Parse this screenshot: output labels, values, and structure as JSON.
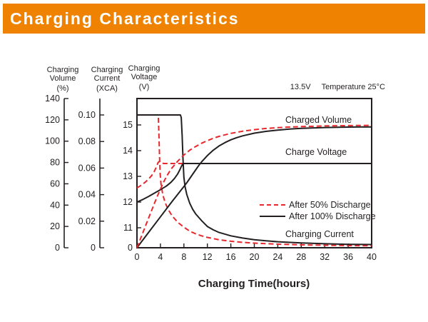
{
  "header": {
    "title": "Charging Characteristics",
    "bg_color": "#EF8200",
    "text_color": "#ffffff"
  },
  "chart_data": {
    "type": "line",
    "title": "Charging Characteristics",
    "xlabel": "Charging Time(hours)",
    "x_range": [
      0,
      40
    ],
    "x_tick_values": [
      0,
      4,
      8,
      12,
      16,
      20,
      24,
      28,
      32,
      36,
      40
    ],
    "x_tick_labels": [
      "0",
      "4",
      "8",
      "12",
      "16",
      "20",
      "24",
      "28",
      "32",
      "36",
      "40"
    ],
    "annotation": {
      "voltage_setting": "13.5V",
      "temperature": "Temperature 25°C"
    },
    "axes": [
      {
        "name": "charging-volume",
        "label_line1": "Charging",
        "label_line2": "Volume",
        "unit": "(%)",
        "range": [
          0,
          140
        ],
        "tick_values": [
          0,
          20,
          40,
          60,
          80,
          100,
          120,
          140
        ],
        "tick_labels": [
          "0",
          "20",
          "40",
          "60",
          "80",
          "100",
          "120",
          "140"
        ]
      },
      {
        "name": "charging-current",
        "label_line1": "Charging",
        "label_line2": "Current",
        "unit": "(XCA)",
        "range": [
          0,
          0.112
        ],
        "tick_values": [
          0,
          0.02,
          0.04,
          0.06,
          0.08,
          0.1
        ],
        "tick_labels": [
          "0",
          "0.02",
          "0.04",
          "0.06",
          "0.08",
          "0.10"
        ]
      },
      {
        "name": "charging-voltage",
        "label_line1": "Charging",
        "label_line2": "Voltage",
        "unit": "(V)",
        "range": [
          0,
          15.5
        ],
        "tick_values": [
          0,
          11,
          12,
          13,
          14,
          15
        ],
        "tick_labels": [
          "0",
          "11",
          "12",
          "13",
          "14",
          "15"
        ]
      }
    ],
    "curve_labels": {
      "charged_volume": "Charged Volume",
      "charge_voltage": "Charge Voltage",
      "charging_current": "Charging Current"
    },
    "legend": [
      {
        "label": "After 50% Discharge",
        "style": "dashed",
        "color": "#e8282c"
      },
      {
        "label": "After 100% Discharge",
        "style": "solid",
        "color": "#231f20"
      }
    ],
    "grid": false,
    "series": [
      {
        "name": "charging-current-50",
        "group": "After 50% Discharge",
        "axis": "current",
        "style": "dashed",
        "color": "#e8282c",
        "points": [
          [
            0,
            0.1
          ],
          [
            3.5,
            0.1
          ],
          [
            3.65,
            0.098
          ],
          [
            3.75,
            0.085
          ],
          [
            3.85,
            0.068
          ],
          [
            3.95,
            0.056
          ],
          [
            4.1,
            0.048
          ],
          [
            4.4,
            0.04
          ],
          [
            4.8,
            0.034
          ],
          [
            5.3,
            0.029
          ],
          [
            6,
            0.024
          ],
          [
            7,
            0.019
          ],
          [
            8,
            0.0155
          ],
          [
            9,
            0.0125
          ],
          [
            10,
            0.0105
          ],
          [
            11,
            0.009
          ],
          [
            12,
            0.0078
          ],
          [
            14,
            0.006
          ],
          [
            16,
            0.0049
          ],
          [
            18,
            0.0041
          ],
          [
            20,
            0.0035
          ],
          [
            24,
            0.0027
          ],
          [
            28,
            0.0022
          ],
          [
            32,
            0.0019
          ],
          [
            36,
            0.0016
          ],
          [
            40,
            0.0015
          ]
        ]
      },
      {
        "name": "charging-current-100",
        "group": "After 100% Discharge",
        "axis": "current",
        "style": "solid",
        "color": "#231f20",
        "points": [
          [
            0,
            0.1
          ],
          [
            7.4,
            0.1
          ],
          [
            7.55,
            0.098
          ],
          [
            7.7,
            0.085
          ],
          [
            7.85,
            0.066
          ],
          [
            8.0,
            0.053
          ],
          [
            8.2,
            0.046
          ],
          [
            8.5,
            0.04
          ],
          [
            9,
            0.0335
          ],
          [
            9.5,
            0.029
          ],
          [
            10,
            0.0255
          ],
          [
            11,
            0.0205
          ],
          [
            12,
            0.016
          ],
          [
            13,
            0.0135
          ],
          [
            14,
            0.0115
          ],
          [
            16,
            0.009
          ],
          [
            18,
            0.0073
          ],
          [
            20,
            0.006
          ],
          [
            22,
            0.0052
          ],
          [
            24,
            0.0045
          ],
          [
            28,
            0.0036
          ],
          [
            32,
            0.003
          ],
          [
            36,
            0.0026
          ],
          [
            40,
            0.0024
          ]
        ]
      },
      {
        "name": "charge-voltage-50",
        "group": "After 50% Discharge",
        "axis": "voltage",
        "style": "dashed",
        "color": "#e8282c",
        "points": [
          [
            0,
            12.55
          ],
          [
            0.5,
            12.62
          ],
          [
            1,
            12.7
          ],
          [
            1.5,
            12.79
          ],
          [
            2,
            12.9
          ],
          [
            2.5,
            13.03
          ],
          [
            2.9,
            13.17
          ],
          [
            3.2,
            13.31
          ],
          [
            3.45,
            13.45
          ],
          [
            3.6,
            13.54
          ],
          [
            3.8,
            13.58
          ],
          [
            4.0,
            13.55
          ],
          [
            4.3,
            13.51
          ],
          [
            4.6,
            13.5
          ],
          [
            9,
            13.5
          ]
        ]
      },
      {
        "name": "charge-voltage-100",
        "group": "After 100% Discharge",
        "axis": "voltage",
        "style": "solid",
        "color": "#231f20",
        "points": [
          [
            0,
            12.0
          ],
          [
            1,
            12.1
          ],
          [
            2,
            12.22
          ],
          [
            3,
            12.35
          ],
          [
            4,
            12.48
          ],
          [
            5,
            12.62
          ],
          [
            5.8,
            12.77
          ],
          [
            6.4,
            12.92
          ],
          [
            6.9,
            13.08
          ],
          [
            7.3,
            13.25
          ],
          [
            7.6,
            13.4
          ],
          [
            7.8,
            13.48
          ],
          [
            8.0,
            13.5
          ],
          [
            40,
            13.5
          ]
        ]
      },
      {
        "name": "charged-volume-100",
        "group": "After 100% Discharge",
        "axis": "volume",
        "style": "solid",
        "color": "#231f20",
        "points": [
          [
            0,
            0
          ],
          [
            2,
            14.5
          ],
          [
            4,
            29
          ],
          [
            6,
            43.5
          ],
          [
            7,
            50.5
          ],
          [
            8,
            57.5
          ],
          [
            8.5,
            61
          ],
          [
            9,
            65
          ],
          [
            9.5,
            69
          ],
          [
            10,
            73
          ],
          [
            10.5,
            77
          ],
          [
            11,
            80.5
          ],
          [
            12,
            86.5
          ],
          [
            13,
            91.5
          ],
          [
            14,
            95.5
          ],
          [
            15,
            98.7
          ],
          [
            16,
            101.3
          ],
          [
            17,
            103.3
          ],
          [
            18,
            105
          ],
          [
            20,
            107.5
          ],
          [
            22,
            109.2
          ],
          [
            24,
            110.4
          ],
          [
            26,
            111.3
          ],
          [
            28,
            112
          ],
          [
            32,
            112.8
          ],
          [
            36,
            113.2
          ],
          [
            40,
            113.4
          ]
        ]
      },
      {
        "name": "charged-volume-50",
        "group": "After 50% Discharge",
        "axis": "volume",
        "style": "dashed",
        "color": "#e8282c",
        "points": [
          [
            0,
            0
          ],
          [
            1,
            14
          ],
          [
            2,
            28
          ],
          [
            3,
            42
          ],
          [
            3.6,
            50
          ],
          [
            4,
            55
          ],
          [
            4.5,
            61
          ],
          [
            5,
            66.5
          ],
          [
            5.5,
            71
          ],
          [
            6,
            75
          ],
          [
            7,
            81.5
          ],
          [
            8,
            87
          ],
          [
            9,
            91.5
          ],
          [
            10,
            95
          ],
          [
            11,
            98
          ],
          [
            12,
            100.5
          ],
          [
            13,
            102.7
          ],
          [
            14,
            104.5
          ],
          [
            16,
            107.3
          ],
          [
            18,
            109.3
          ],
          [
            20,
            110.8
          ],
          [
            22,
            111.9
          ],
          [
            24,
            112.7
          ],
          [
            26,
            113.3
          ],
          [
            28,
            113.7
          ],
          [
            32,
            114.3
          ],
          [
            36,
            114.6
          ],
          [
            40,
            114.8
          ]
        ]
      }
    ]
  }
}
